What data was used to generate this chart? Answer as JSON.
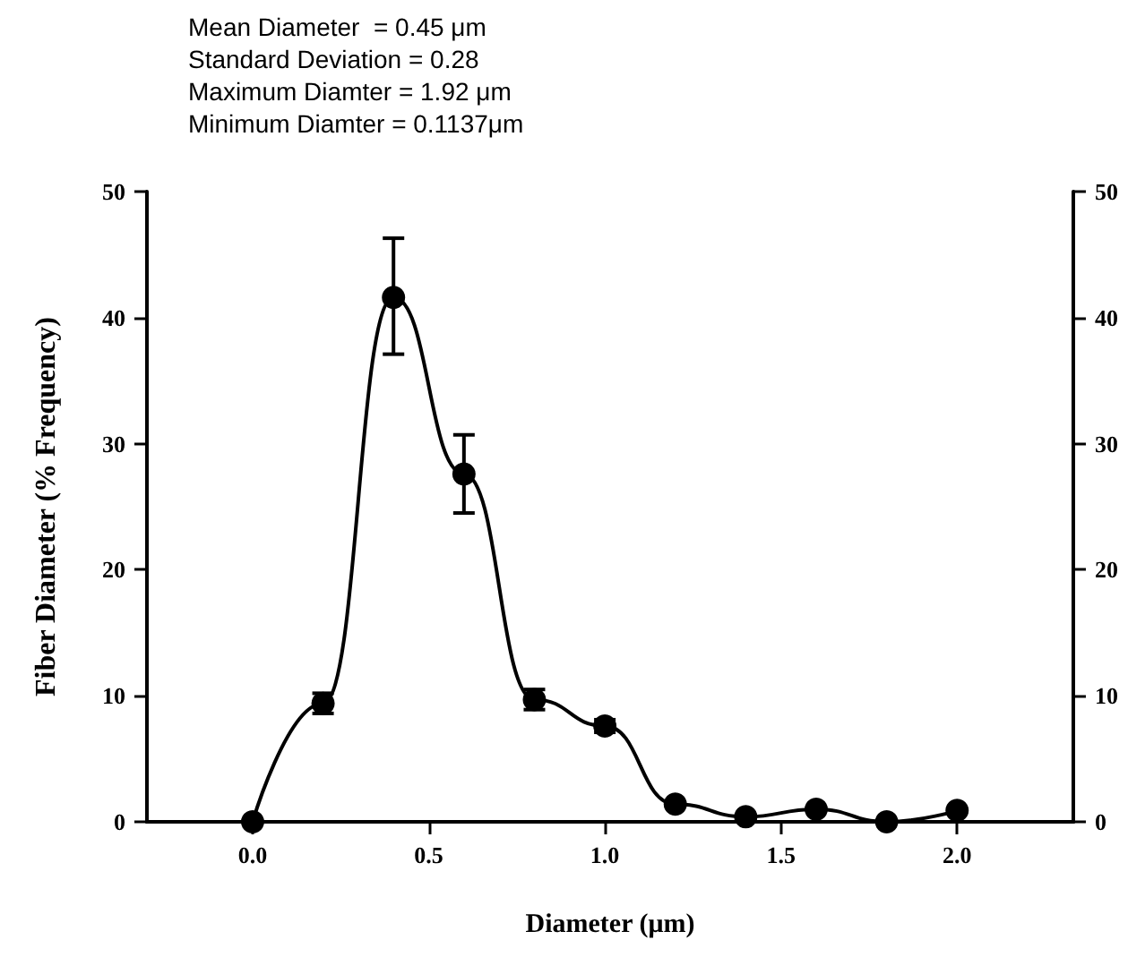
{
  "chart_data": {
    "type": "line",
    "xlabel": "Diameter (μm)",
    "ylabel": "Fiber Diameter (% Frequency)",
    "annotations": [
      "Mean Diameter  = 0.45 μm",
      "Standard Deviation = 0.28",
      "Maximum Diamter = 1.92 μm",
      "Minimum Diamter = 0.1137μm"
    ],
    "x": [
      0,
      0.2,
      0.4,
      0.6,
      0.8,
      1.0,
      1.2,
      1.4,
      1.6,
      1.8,
      2.0
    ],
    "series": [
      {
        "color": "#000000",
        "values": [
          0,
          9.4,
          41.6,
          27.6,
          9.7,
          7.6,
          1.4,
          0.4,
          1.0,
          0,
          0.9
        ],
        "errors": [
          null,
          0.8,
          [
            37.1,
            46.3
          ],
          [
            24.5,
            30.7
          ],
          0.8,
          0.5,
          null,
          null,
          null,
          null,
          null
        ]
      }
    ],
    "xlim": [
      -0.3,
      2.33
    ],
    "xticks": [
      {
        "value": 0,
        "label": "0.0"
      },
      {
        "value": 0.5,
        "label": "0.5"
      },
      {
        "value": 1,
        "label": "1.0"
      },
      {
        "value": 1.5,
        "label": "1.5"
      },
      {
        "value": 2,
        "label": "2.0"
      }
    ],
    "ylim": [
      0,
      50
    ],
    "yticks": [
      0,
      10,
      20,
      30,
      40,
      50
    ],
    "y2lim": [
      0,
      50
    ],
    "y2ticks": [
      0,
      10,
      20,
      30,
      40,
      50
    ],
    "marker": "circle",
    "line_style": "solid"
  }
}
